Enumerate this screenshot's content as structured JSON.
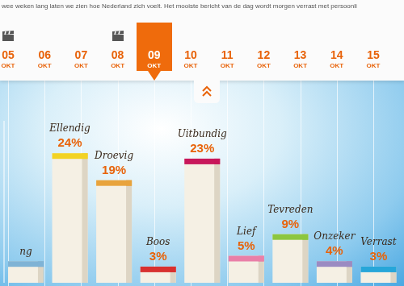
{
  "header": {
    "text": "wee weken lang laten we zien hoe Nederland zich voelt. Het mooiste bericht van de dag wordt morgen verrast met persoonli",
    "dates": [
      {
        "day": "05",
        "month": "OKT",
        "film": true
      },
      {
        "day": "06",
        "month": "OKT"
      },
      {
        "day": "07",
        "month": "OKT"
      },
      {
        "day": "08",
        "month": "OKT",
        "film": true
      },
      {
        "day": "09",
        "month": "OKT",
        "selected": true
      },
      {
        "day": "10",
        "month": "OKT"
      },
      {
        "day": "11",
        "month": "OKT"
      },
      {
        "day": "12",
        "month": "OKT"
      },
      {
        "day": "13",
        "month": "OKT"
      },
      {
        "day": "14",
        "month": "OKT"
      },
      {
        "day": "15",
        "month": "OKT"
      }
    ]
  },
  "chart_data": {
    "type": "bar",
    "categories": [
      "ng",
      "Ellendig",
      "Droevig",
      "Boos",
      "Uitbundig",
      "Lief",
      "Tevreden",
      "Onzeker",
      "Verrast"
    ],
    "values": [
      4,
      24,
      19,
      3,
      23,
      5,
      9,
      4,
      3
    ],
    "value_labels": [
      null,
      "24%",
      "19%",
      "3%",
      "23%",
      "5%",
      "9%",
      "4%",
      "3%"
    ],
    "colors": [
      "#7fb3d5",
      "#f2d324",
      "#e8a33c",
      "#d8302f",
      "#c8175a",
      "#e97fa8",
      "#8cc63f",
      "#9b8bc2",
      "#27a6d9"
    ],
    "ylim": [
      0,
      30
    ],
    "data_labels": true,
    "tick_labels": false
  }
}
